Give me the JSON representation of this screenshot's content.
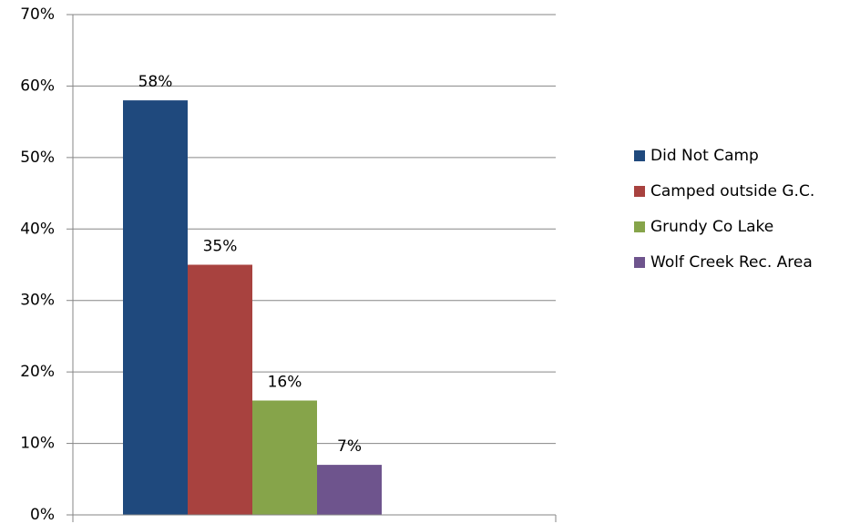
{
  "chart_data": {
    "type": "bar",
    "categories": [
      null
    ],
    "series": [
      {
        "name": "Did Not Camp",
        "color": "#1f497d",
        "values": [
          58
        ],
        "value_labels": [
          "58%"
        ]
      },
      {
        "name": "Camped outside G.C.",
        "color": "#a8423f",
        "values": [
          35
        ],
        "value_labels": [
          "35%"
        ]
      },
      {
        "name": "Grundy Co Lake",
        "color": "#86a44a",
        "values": [
          16
        ],
        "value_labels": [
          "16%"
        ]
      },
      {
        "name": "Wolf Creek Rec. Area",
        "color": "#6e548d",
        "values": [
          7
        ],
        "value_labels": [
          "7%"
        ]
      }
    ],
    "ylim": [
      0,
      70
    ],
    "yticks": [
      {
        "value": 0,
        "label": "0%"
      },
      {
        "value": 10,
        "label": "10%"
      },
      {
        "value": 20,
        "label": "20%"
      },
      {
        "value": 30,
        "label": "30%"
      },
      {
        "value": 40,
        "label": "40%"
      },
      {
        "value": 50,
        "label": "50%"
      },
      {
        "value": 60,
        "label": "60%"
      },
      {
        "value": 70,
        "label": "70%"
      }
    ],
    "grid": true,
    "legend": "right"
  }
}
